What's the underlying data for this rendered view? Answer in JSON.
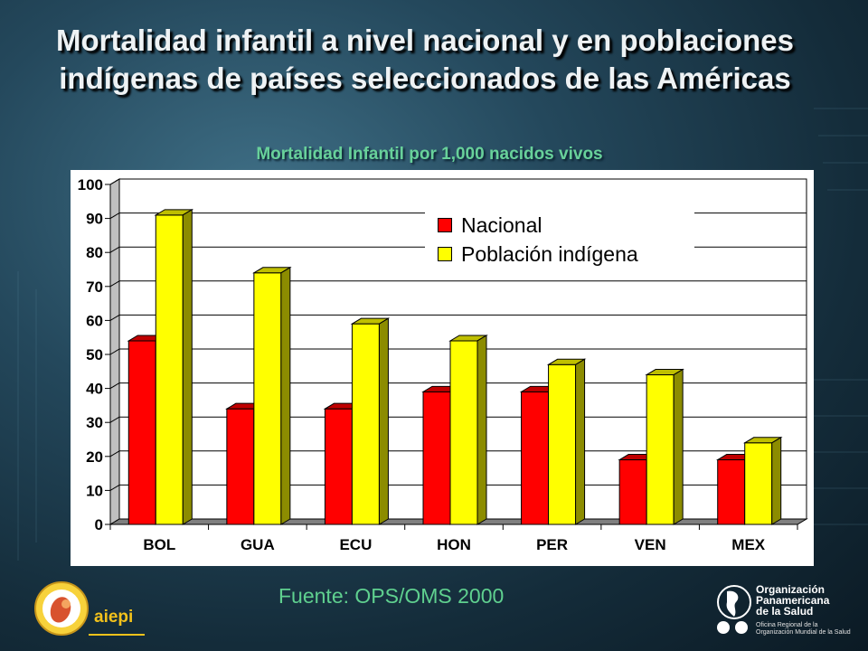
{
  "slide": {
    "title": "Mortalidad infantil a nivel nacional y en poblaciones indígenas de países seleccionados de las Américas",
    "source": "Fuente: OPS/OMS 2000"
  },
  "logos": {
    "aiepi_text": "aiepi",
    "ops_name": "Organización\nPanamericana\nde la Salud",
    "ops_sub": "Oficina Regional de la\nOrganización Mundial de la Salud"
  },
  "chart_data": {
    "type": "bar",
    "title": "Mortalidad Infantil por 1,000 nacidos vivos",
    "categories": [
      "BOL",
      "GUA",
      "ECU",
      "HON",
      "PER",
      "VEN",
      "MEX"
    ],
    "series": [
      {
        "name": "Nacional",
        "color": "#ff0000",
        "values": [
          54,
          34,
          34,
          39,
          39,
          19,
          19
        ]
      },
      {
        "name": "Población indígena",
        "color": "#ffff00",
        "values": [
          91,
          74,
          59,
          54,
          47,
          44,
          24
        ]
      }
    ],
    "ylim": [
      0,
      100
    ],
    "yticks": [
      0,
      10,
      20,
      30,
      40,
      50,
      60,
      70,
      80,
      90,
      100
    ],
    "grid": true,
    "legend_position": "top-right"
  }
}
